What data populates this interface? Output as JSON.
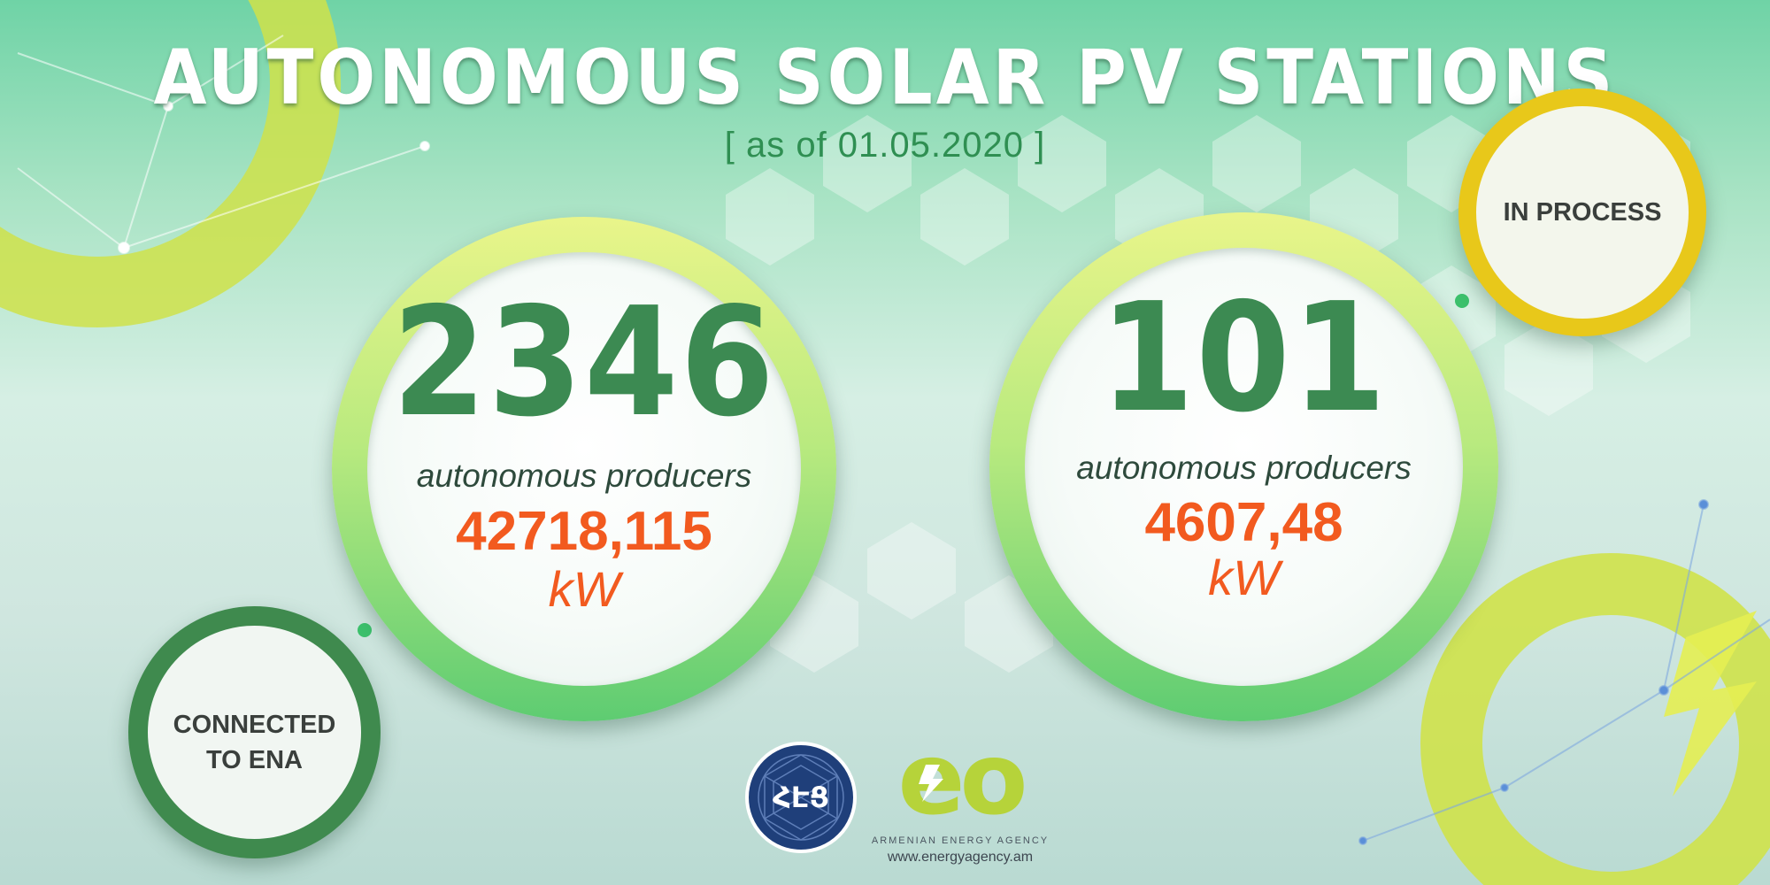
{
  "header": {
    "title": "AUTONOMOUS SOLAR PV STATIONS",
    "subtitle": "[ as of 01.05.2020 ]"
  },
  "status": {
    "connected": "CONNECTED\nTO ENA",
    "in_process": "IN PROCESS"
  },
  "stats": [
    {
      "count": "2346",
      "label": "autonomous producers",
      "capacity": "42718,115",
      "unit": "kW"
    },
    {
      "count": "101",
      "label": "autonomous producers",
      "capacity": "4607,48",
      "unit": "kW"
    }
  ],
  "footer": {
    "logo_ena_text": "ՀԷՑ",
    "agency_logo_text": "eo",
    "agency_name": "ARMENIAN ENERGY AGENCY",
    "website": "www.energyagency.am"
  },
  "colors": {
    "accent_green": "#3c8a52",
    "value_orange": "#f25a1f",
    "ring_yellow": "#e8c81a",
    "ring_dark_green": "#3f8a4e"
  }
}
